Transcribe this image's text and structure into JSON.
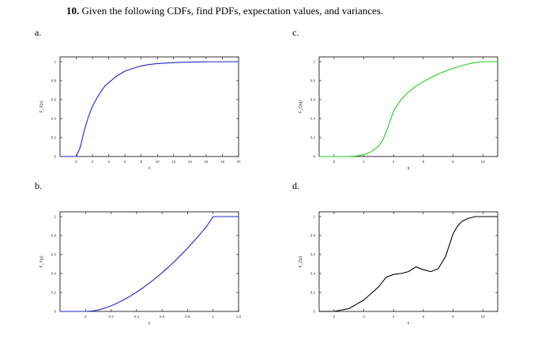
{
  "problem": {
    "number": "10.",
    "text": "Given the following CDFs, find PDFs, expectation values, and variances."
  },
  "chart_data": [
    {
      "id": "a",
      "panel_label": "a.",
      "type": "line",
      "ylabel": "F_X(x)",
      "xlabel": "x",
      "xlim": [
        -2,
        20
      ],
      "ylim": [
        0,
        1.05
      ],
      "xticks": [
        0,
        2,
        4,
        6,
        8,
        10,
        12,
        14,
        16,
        18,
        20
      ],
      "xtick_labels": [
        "0",
        "2",
        "4",
        "6",
        "8",
        "10",
        "12",
        "14",
        "16",
        "18",
        "20"
      ],
      "yticks": [
        0,
        0.2,
        0.4,
        0.6,
        0.8,
        1
      ],
      "ytick_labels": [
        "0",
        "0.2",
        "0.4",
        "0.6",
        "0.8",
        "1"
      ],
      "color": "#2222cc",
      "series": [
        {
          "x": [
            -2,
            -1,
            0,
            0.5,
            1,
            1.5,
            2,
            2.5,
            3,
            3.5,
            4,
            5,
            6,
            7,
            8,
            9,
            10,
            12,
            14,
            16,
            18,
            20
          ],
          "y": [
            0,
            0,
            0,
            0.1,
            0.28,
            0.42,
            0.53,
            0.61,
            0.68,
            0.74,
            0.78,
            0.85,
            0.9,
            0.93,
            0.955,
            0.97,
            0.98,
            0.99,
            0.995,
            0.998,
            0.999,
            1.0
          ]
        }
      ]
    },
    {
      "id": "b",
      "panel_label": "b.",
      "type": "line",
      "ylabel": "F_Y(y)",
      "xlabel": "y",
      "xlim": [
        -0.2,
        1.2
      ],
      "ylim": [
        0,
        1.05
      ],
      "xticks": [
        0,
        0.2,
        0.4,
        0.6,
        0.8,
        1,
        1.2
      ],
      "xtick_labels": [
        "0",
        "0.2",
        "0.4",
        "0.6",
        "0.8",
        "1",
        "1.2"
      ],
      "yticks": [
        0,
        0.2,
        0.4,
        0.6,
        0.8,
        1
      ],
      "ytick_labels": [
        "0",
        "0.2",
        "0.4",
        "0.6",
        "0.8",
        "1"
      ],
      "color": "#2222cc",
      "series": [
        {
          "x": [
            -0.2,
            -0.1,
            0,
            0.05,
            0.1,
            0.15,
            0.2,
            0.25,
            0.3,
            0.35,
            0.4,
            0.45,
            0.5,
            0.55,
            0.6,
            0.65,
            0.7,
            0.75,
            0.8,
            0.85,
            0.9,
            0.95,
            1.0,
            1.1,
            1.2
          ],
          "y": [
            0,
            0,
            0,
            0.004,
            0.015,
            0.034,
            0.059,
            0.089,
            0.123,
            0.161,
            0.203,
            0.249,
            0.299,
            0.352,
            0.408,
            0.468,
            0.531,
            0.598,
            0.668,
            0.742,
            0.818,
            0.898,
            1.0,
            1.0,
            1.0
          ]
        }
      ]
    },
    {
      "id": "c",
      "panel_label": "c.",
      "type": "line",
      "ylabel": "F_Q(q)",
      "xlabel": "q",
      "xlim": [
        -1,
        11
      ],
      "ylim": [
        0,
        1.05
      ],
      "xticks": [
        0,
        2,
        4,
        6,
        8,
        10
      ],
      "xtick_labels": [
        "0",
        "2",
        "4",
        "6",
        "8",
        "10"
      ],
      "yticks": [
        0,
        0.2,
        0.4,
        0.6,
        0.8,
        1
      ],
      "ytick_labels": [
        "0",
        "0.2",
        "0.4",
        "0.6",
        "0.8",
        "1"
      ],
      "color": "#22cc22",
      "series": [
        {
          "x": [
            -1,
            0,
            1,
            1.5,
            2,
            2.5,
            3,
            3.3,
            3.6,
            4,
            4.5,
            5,
            5.5,
            6,
            6.5,
            7,
            7.5,
            8,
            8.5,
            9,
            9.5,
            10,
            11
          ],
          "y": [
            0,
            0,
            0,
            0.005,
            0.02,
            0.05,
            0.11,
            0.18,
            0.3,
            0.48,
            0.6,
            0.68,
            0.74,
            0.79,
            0.83,
            0.87,
            0.9,
            0.93,
            0.955,
            0.975,
            0.99,
            1.0,
            1.0
          ]
        }
      ]
    },
    {
      "id": "d",
      "panel_label": "d.",
      "type": "line",
      "ylabel": "F_Z(z)",
      "xlabel": "z",
      "xlim": [
        -1,
        11
      ],
      "ylim": [
        0,
        1.05
      ],
      "xticks": [
        0,
        2,
        4,
        6,
        8,
        10
      ],
      "xtick_labels": [
        "0",
        "2",
        "4",
        "6",
        "8",
        "10"
      ],
      "yticks": [
        0,
        0.2,
        0.4,
        0.6,
        0.8,
        1
      ],
      "ytick_labels": [
        "0",
        "0.2",
        "0.4",
        "0.6",
        "0.8",
        "1"
      ],
      "color": "#000000",
      "series": [
        {
          "x": [
            -1,
            0,
            1,
            2,
            3,
            3.5,
            4,
            4.5,
            5,
            5.5,
            6,
            6.5,
            7,
            7.5,
            8,
            8.3,
            8.6,
            9,
            9.5,
            10,
            11
          ],
          "y": [
            0,
            0,
            0.03,
            0.12,
            0.26,
            0.36,
            0.39,
            0.4,
            0.42,
            0.47,
            0.44,
            0.42,
            0.45,
            0.58,
            0.82,
            0.9,
            0.95,
            0.98,
            1.0,
            1.0,
            1.0
          ]
        }
      ]
    }
  ]
}
